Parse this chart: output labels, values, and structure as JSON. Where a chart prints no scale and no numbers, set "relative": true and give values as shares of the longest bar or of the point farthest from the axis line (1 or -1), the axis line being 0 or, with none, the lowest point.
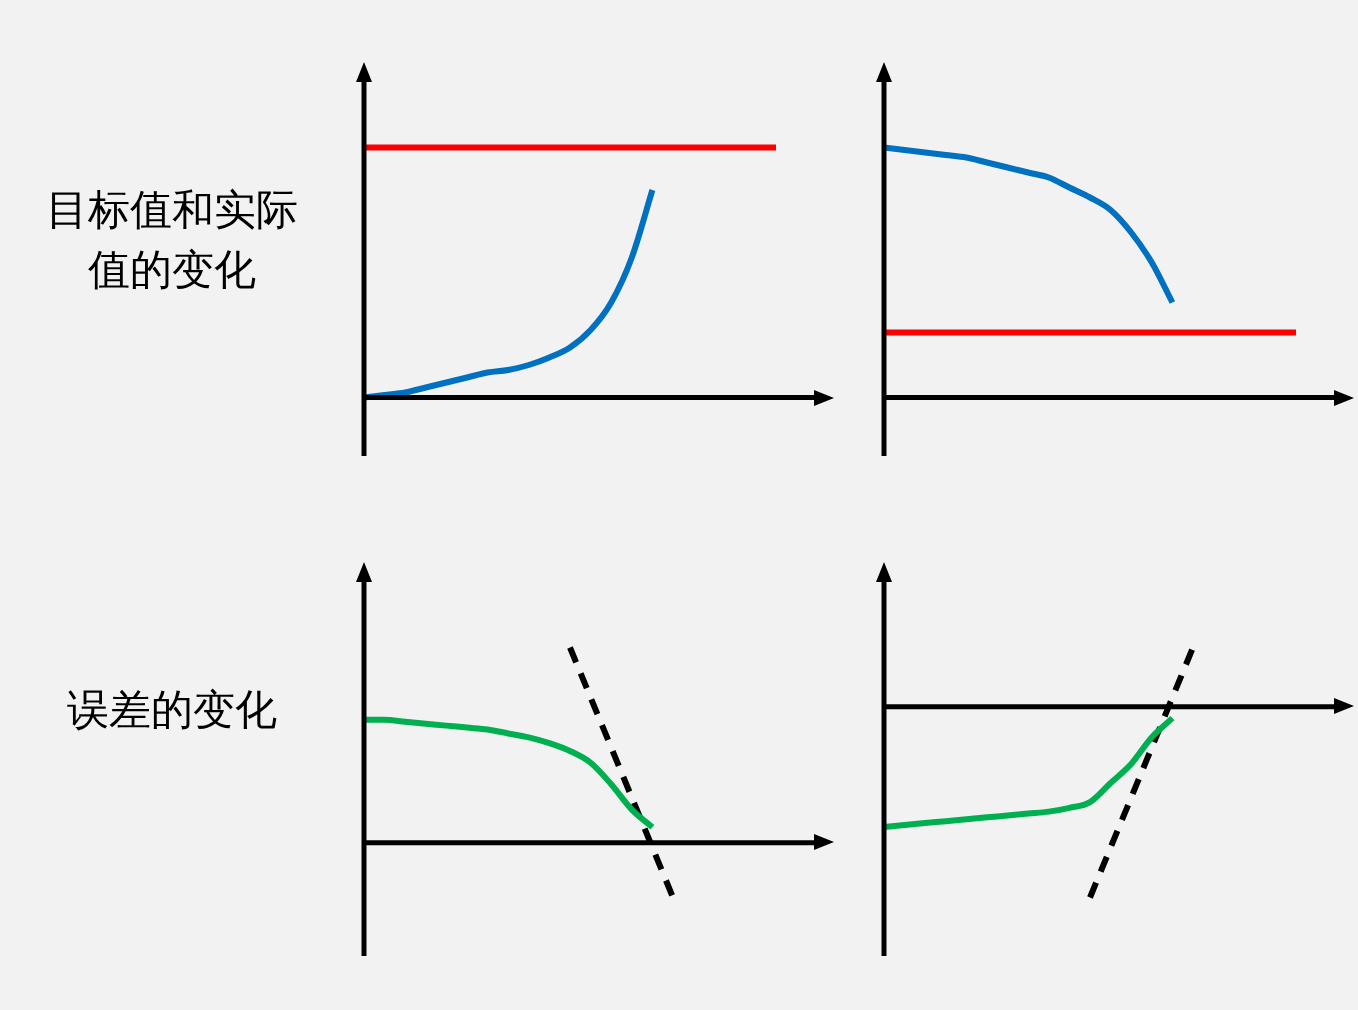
{
  "chart_data": [
    {
      "type": "line",
      "relative": true,
      "ylabel": "目标值和实际值的变化",
      "marker": "none",
      "categories": [
        null,
        null,
        null,
        null,
        null,
        null,
        null,
        null,
        null,
        null,
        null,
        null,
        null,
        null,
        null,
        null,
        null,
        null,
        null,
        null,
        null
      ],
      "series": [
        {
          "color": "#ff0000",
          "values": [
            1,
            1,
            1,
            1,
            1,
            1,
            1,
            1,
            1,
            1,
            1,
            1,
            1,
            1,
            1,
            1,
            1,
            1,
            1,
            1,
            1
          ]
        },
        {
          "color": "#0070c0",
          "values": [
            0,
            0.01,
            0.02,
            0.04,
            0.06,
            0.08,
            0.1,
            0.11,
            0.13,
            0.16,
            0.2,
            0.27,
            0.38,
            0.56,
            0.83,
            null,
            null,
            null,
            null,
            null,
            null
          ]
        }
      ]
    },
    {
      "type": "line",
      "relative": true,
      "marker": "none",
      "categories": [
        null,
        null,
        null,
        null,
        null,
        null,
        null,
        null,
        null,
        null,
        null,
        null,
        null,
        null,
        null,
        null,
        null,
        null,
        null,
        null,
        null
      ],
      "series": [
        {
          "color": "#ff0000",
          "values": [
            0.26,
            0.26,
            0.26,
            0.26,
            0.26,
            0.26,
            0.26,
            0.26,
            0.26,
            0.26,
            0.26,
            0.26,
            0.26,
            0.26,
            0.26,
            0.26,
            0.26,
            0.26,
            0.26,
            0.26,
            0.26
          ]
        },
        {
          "color": "#0070c0",
          "values": [
            1,
            0.99,
            0.98,
            0.97,
            0.96,
            0.94,
            0.92,
            0.9,
            0.88,
            0.84,
            0.8,
            0.75,
            0.66,
            0.54,
            0.38,
            null,
            null,
            null,
            null,
            null,
            null
          ]
        }
      ]
    },
    {
      "type": "line",
      "relative": true,
      "ylabel": "误差的变化",
      "marker": "none",
      "categories": [
        null,
        null,
        null,
        null,
        null,
        null,
        null,
        null,
        null,
        null,
        null,
        null,
        null,
        null,
        null,
        null,
        null,
        null,
        null,
        null,
        null
      ],
      "series": [
        {
          "color": "#00b050",
          "values": [
            0.63,
            0.63,
            0.62,
            0.61,
            0.6,
            0.59,
            0.58,
            0.56,
            0.54,
            0.51,
            0.47,
            0.41,
            0.3,
            0.17,
            0.08,
            null,
            null,
            null,
            null,
            null,
            null
          ]
        },
        {
          "color": "#000000",
          "line_style": "dashed",
          "values": [
            null,
            null,
            null,
            null,
            null,
            null,
            null,
            null,
            null,
            null,
            1,
            null,
            null,
            null,
            null,
            -0.28,
            null,
            null,
            null,
            null,
            null
          ]
        }
      ]
    },
    {
      "type": "line",
      "relative": true,
      "marker": "none",
      "categories": [
        null,
        null,
        null,
        null,
        null,
        null,
        null,
        null,
        null,
        null,
        null,
        null,
        null,
        null,
        null,
        null,
        null,
        null,
        null,
        null,
        null
      ],
      "series": [
        {
          "color": "#00b050",
          "values": [
            -0.63,
            -0.62,
            -0.61,
            -0.6,
            -0.59,
            -0.58,
            -0.57,
            -0.56,
            -0.55,
            -0.53,
            -0.5,
            -0.4,
            -0.3,
            -0.16,
            -0.06,
            null,
            null,
            null,
            null,
            null,
            null
          ]
        },
        {
          "color": "#000000",
          "line_style": "dashed",
          "values": [
            null,
            null,
            null,
            null,
            null,
            null,
            null,
            null,
            null,
            null,
            -1,
            null,
            null,
            null,
            null,
            0.31,
            null,
            null,
            null,
            null,
            null
          ]
        }
      ]
    }
  ]
}
